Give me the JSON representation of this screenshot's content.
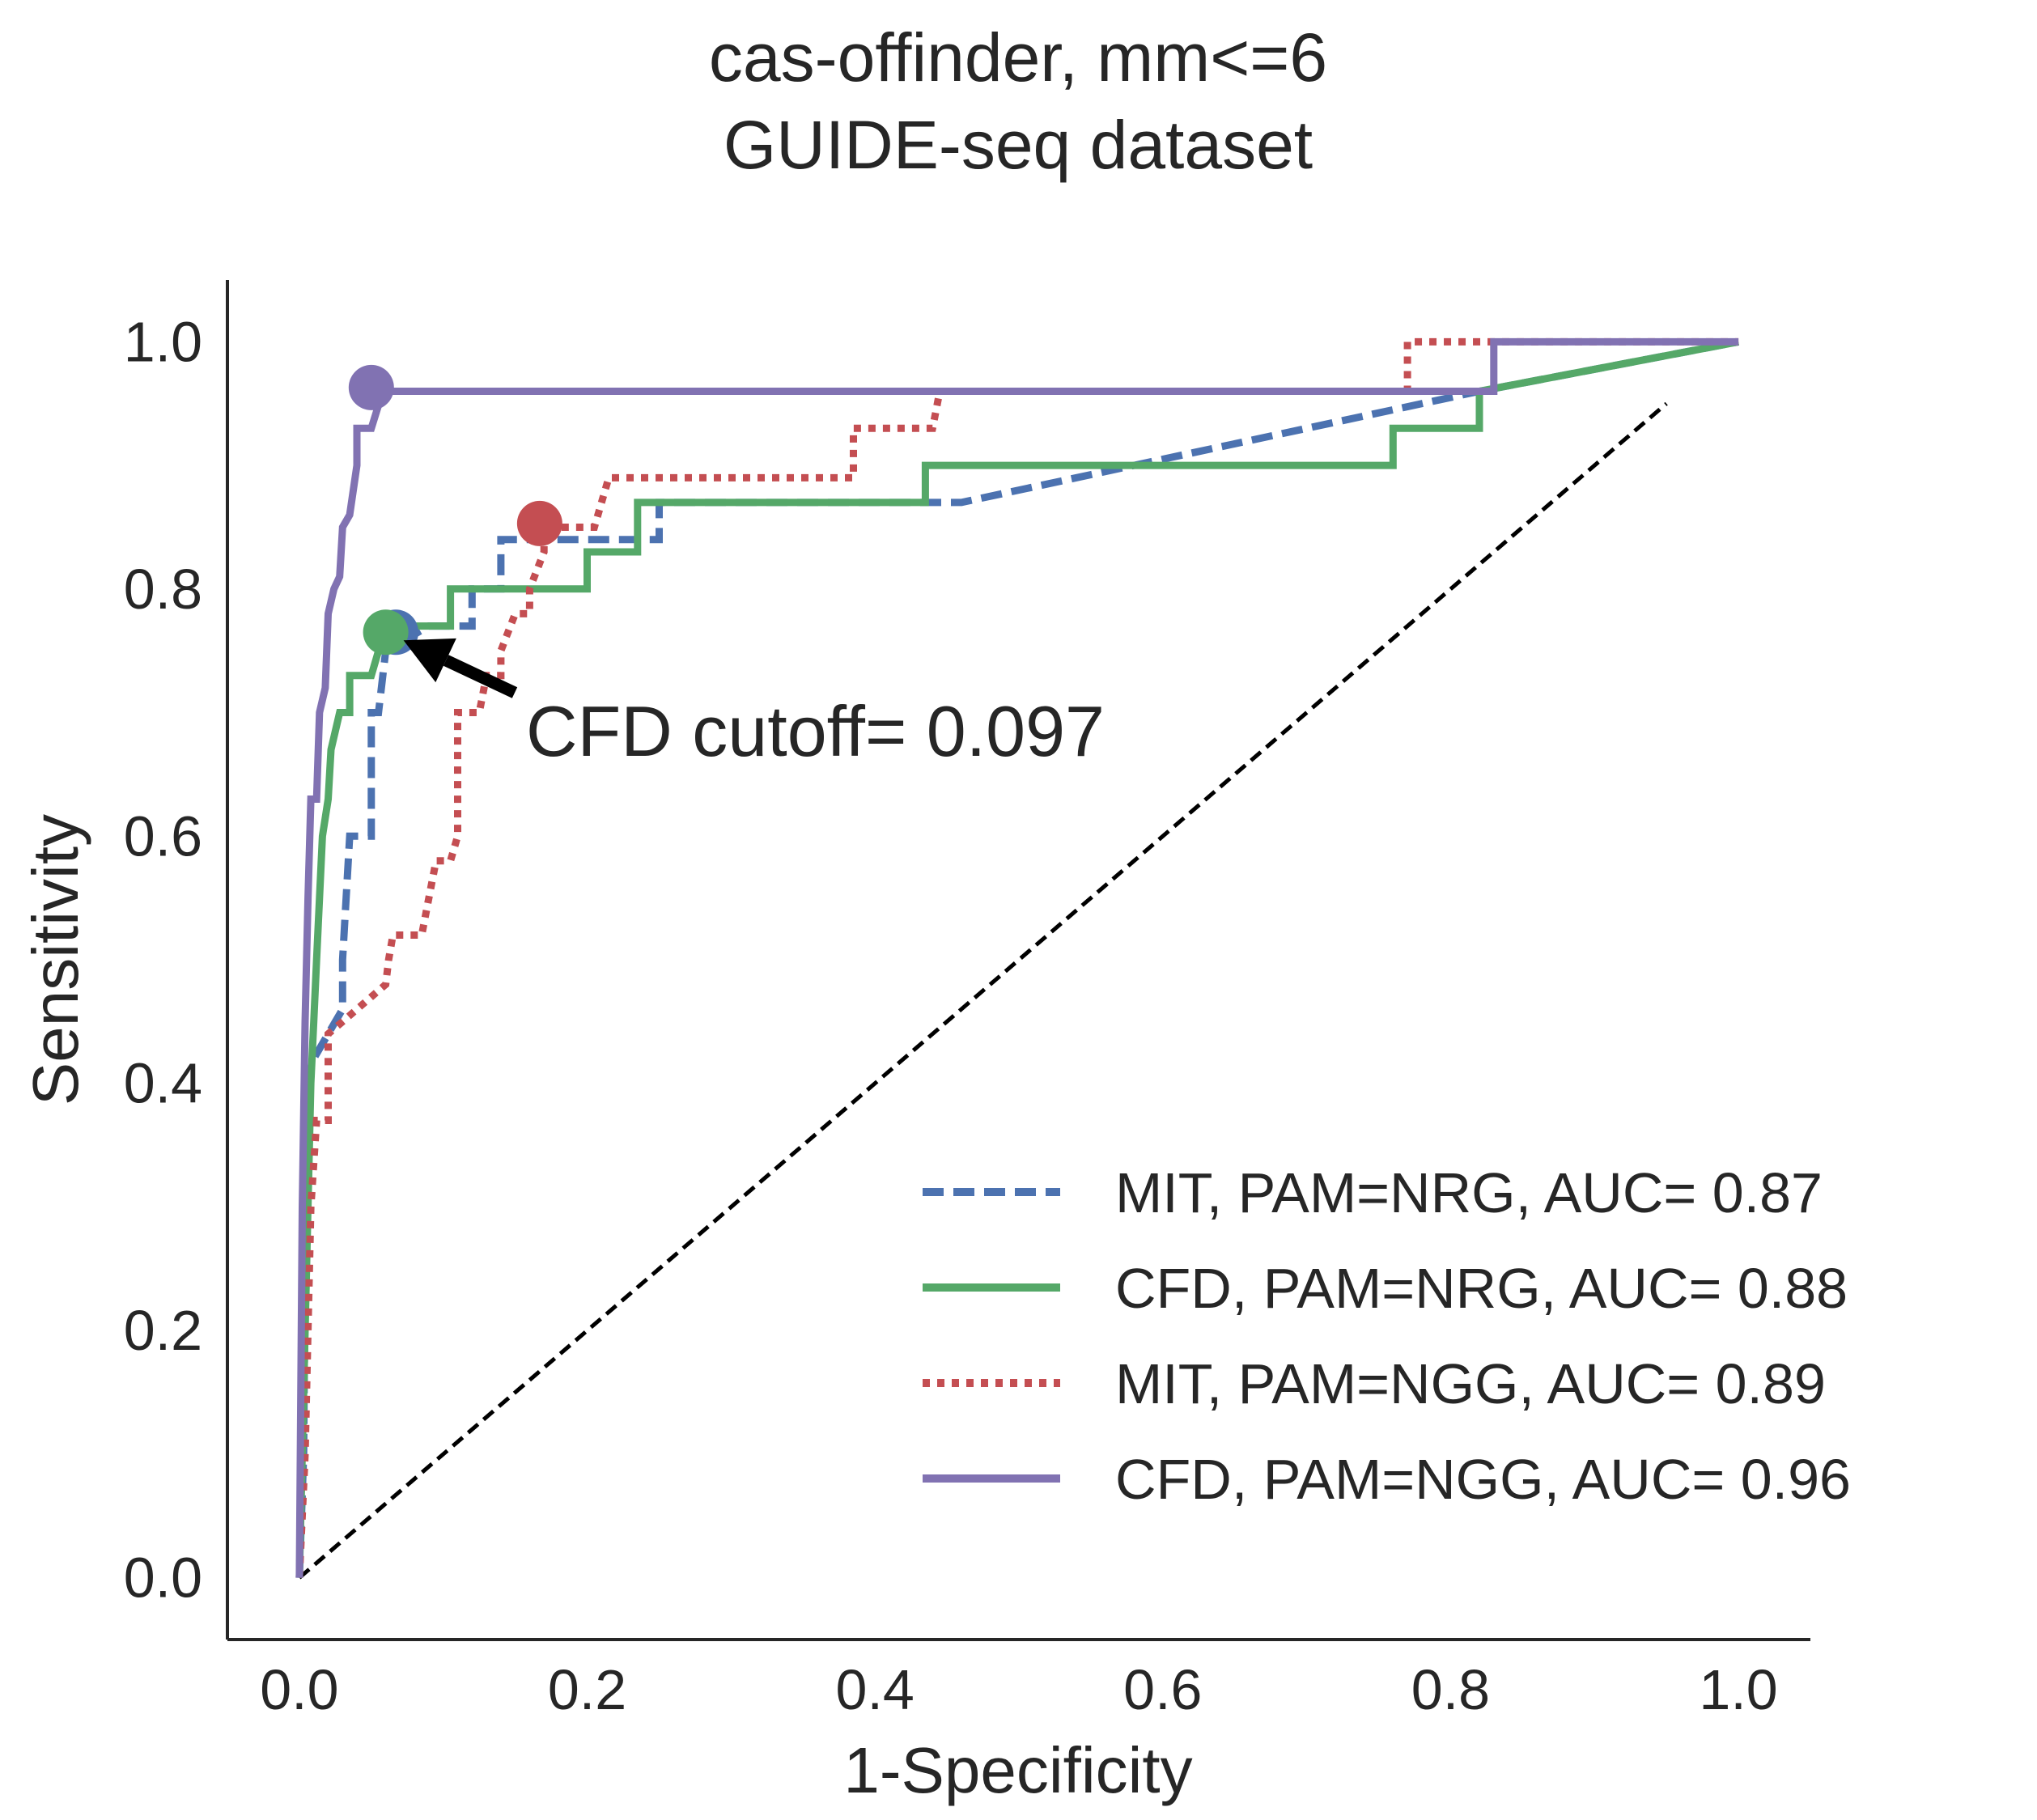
{
  "chart_data": {
    "type": "line",
    "title_lines": [
      "cas-offinder, mm<=6",
      "GUIDE-seq dataset"
    ],
    "xlabel": "1-Specificity",
    "ylabel": "Sensitivity",
    "xlim": [
      -0.05,
      1.05
    ],
    "ylim": [
      -0.05,
      1.05
    ],
    "xticks": [
      "0.0",
      "0.2",
      "0.4",
      "0.6",
      "0.8",
      "1.0"
    ],
    "yticks": [
      "0.0",
      "0.2",
      "0.4",
      "0.6",
      "0.8",
      "1.0"
    ],
    "legend_position": "lower-right",
    "series": [
      {
        "name": "MIT, PAM=NRG, AUC= 0.87",
        "color": "#4c72b0",
        "style": "dashed",
        "points": [
          [
            0,
            0
          ],
          [
            0.003,
            0.1
          ],
          [
            0.005,
            0.4
          ],
          [
            0.01,
            0.42
          ],
          [
            0.02,
            0.44
          ],
          [
            0.03,
            0.46
          ],
          [
            0.03,
            0.5
          ],
          [
            0.035,
            0.6
          ],
          [
            0.05,
            0.6
          ],
          [
            0.05,
            0.7
          ],
          [
            0.055,
            0.7
          ],
          [
            0.06,
            0.75
          ],
          [
            0.09,
            0.77
          ],
          [
            0.12,
            0.77
          ],
          [
            0.12,
            0.8
          ],
          [
            0.14,
            0.8
          ],
          [
            0.14,
            0.84
          ],
          [
            0.25,
            0.84
          ],
          [
            0.25,
            0.87
          ],
          [
            0.46,
            0.87
          ],
          [
            0.82,
            0.96
          ],
          [
            1.0,
            1.0
          ]
        ]
      },
      {
        "name": "CFD, PAM=NRG, AUC= 0.88",
        "color": "#55a868",
        "style": "solid",
        "points": [
          [
            0,
            0
          ],
          [
            0.004,
            0.2
          ],
          [
            0.008,
            0.4
          ],
          [
            0.01,
            0.45
          ],
          [
            0.012,
            0.5
          ],
          [
            0.014,
            0.55
          ],
          [
            0.016,
            0.6
          ],
          [
            0.02,
            0.63
          ],
          [
            0.022,
            0.67
          ],
          [
            0.028,
            0.7
          ],
          [
            0.035,
            0.7
          ],
          [
            0.035,
            0.73
          ],
          [
            0.05,
            0.73
          ],
          [
            0.055,
            0.75
          ],
          [
            0.06,
            0.77
          ],
          [
            0.105,
            0.77
          ],
          [
            0.105,
            0.8
          ],
          [
            0.2,
            0.8
          ],
          [
            0.2,
            0.83
          ],
          [
            0.235,
            0.83
          ],
          [
            0.235,
            0.87
          ],
          [
            0.435,
            0.87
          ],
          [
            0.435,
            0.9
          ],
          [
            0.76,
            0.9
          ],
          [
            0.76,
            0.93
          ],
          [
            0.82,
            0.93
          ],
          [
            0.82,
            0.96
          ],
          [
            1.0,
            1.0
          ]
        ]
      },
      {
        "name": "MIT, PAM=NGG, AUC= 0.89",
        "color": "#c44e52",
        "style": "dotted",
        "points": [
          [
            0,
            0
          ],
          [
            0.004,
            0.1
          ],
          [
            0.008,
            0.3
          ],
          [
            0.012,
            0.37
          ],
          [
            0.02,
            0.37
          ],
          [
            0.02,
            0.44
          ],
          [
            0.03,
            0.45
          ],
          [
            0.05,
            0.47
          ],
          [
            0.06,
            0.48
          ],
          [
            0.062,
            0.5
          ],
          [
            0.065,
            0.52
          ],
          [
            0.085,
            0.52
          ],
          [
            0.09,
            0.55
          ],
          [
            0.095,
            0.58
          ],
          [
            0.105,
            0.58
          ],
          [
            0.11,
            0.6
          ],
          [
            0.11,
            0.7
          ],
          [
            0.125,
            0.7
          ],
          [
            0.13,
            0.73
          ],
          [
            0.14,
            0.73
          ],
          [
            0.14,
            0.75
          ],
          [
            0.15,
            0.78
          ],
          [
            0.16,
            0.78
          ],
          [
            0.16,
            0.8
          ],
          [
            0.17,
            0.83
          ],
          [
            0.17,
            0.85
          ],
          [
            0.205,
            0.85
          ],
          [
            0.21,
            0.87
          ],
          [
            0.215,
            0.89
          ],
          [
            0.385,
            0.89
          ],
          [
            0.385,
            0.93
          ],
          [
            0.44,
            0.93
          ],
          [
            0.445,
            0.96
          ],
          [
            0.77,
            0.96
          ],
          [
            0.77,
            1.0
          ],
          [
            1.0,
            1.0
          ]
        ]
      },
      {
        "name": "CFD, PAM=NGG, AUC= 0.96",
        "color": "#8172b2",
        "style": "solid",
        "points": [
          [
            0,
            0
          ],
          [
            0.002,
            0.3
          ],
          [
            0.004,
            0.45
          ],
          [
            0.006,
            0.55
          ],
          [
            0.008,
            0.63
          ],
          [
            0.012,
            0.63
          ],
          [
            0.014,
            0.7
          ],
          [
            0.018,
            0.72
          ],
          [
            0.02,
            0.78
          ],
          [
            0.024,
            0.8
          ],
          [
            0.028,
            0.81
          ],
          [
            0.03,
            0.85
          ],
          [
            0.035,
            0.86
          ],
          [
            0.04,
            0.9
          ],
          [
            0.04,
            0.93
          ],
          [
            0.05,
            0.93
          ],
          [
            0.058,
            0.96
          ],
          [
            0.83,
            0.96
          ],
          [
            0.83,
            1.0
          ],
          [
            1.0,
            1.0
          ]
        ]
      }
    ],
    "cutoff_markers": [
      {
        "x": 0.067,
        "y": 0.765,
        "color": "#4c72b0"
      },
      {
        "x": 0.06,
        "y": 0.765,
        "color": "#55a868"
      },
      {
        "x": 0.167,
        "y": 0.853,
        "color": "#c44e52"
      },
      {
        "x": 0.05,
        "y": 0.963,
        "color": "#8172b2"
      }
    ],
    "diagonal": {
      "color": "#000000",
      "style": "dashed",
      "from": [
        0,
        0
      ],
      "to": [
        0.95,
        0.95
      ]
    },
    "annotation": {
      "text": "CFD cutoff= 0.097",
      "target": [
        0.06,
        0.765
      ],
      "text_anchor": [
        0.155,
        0.68
      ],
      "arrow_color": "#000000"
    }
  }
}
